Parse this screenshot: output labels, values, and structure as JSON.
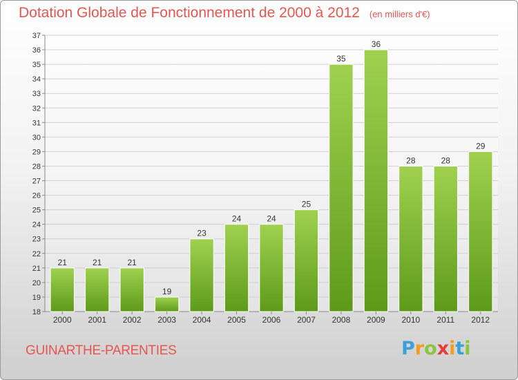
{
  "chart_data": {
    "type": "bar",
    "title": "Dotation Globale de Fonctionnement de 2000 à 2012",
    "unit_label": "(en milliers d'€)",
    "categories": [
      "2000",
      "2001",
      "2002",
      "2003",
      "2004",
      "2005",
      "2006",
      "2007",
      "2008",
      "2009",
      "2010",
      "2011",
      "2012"
    ],
    "values": [
      21,
      21,
      21,
      19,
      23,
      24,
      24,
      25,
      35,
      36,
      28,
      28,
      29
    ],
    "ylim": [
      18,
      37
    ],
    "yticks": [
      18,
      19,
      20,
      21,
      22,
      23,
      24,
      25,
      26,
      27,
      28,
      29,
      30,
      31,
      32,
      33,
      34,
      35,
      36,
      37
    ],
    "grid": true,
    "bar_color": "#7bb82e"
  },
  "commune_name": "GUINARTHE-PARENTIES",
  "logo": {
    "text": "Proxiti"
  }
}
